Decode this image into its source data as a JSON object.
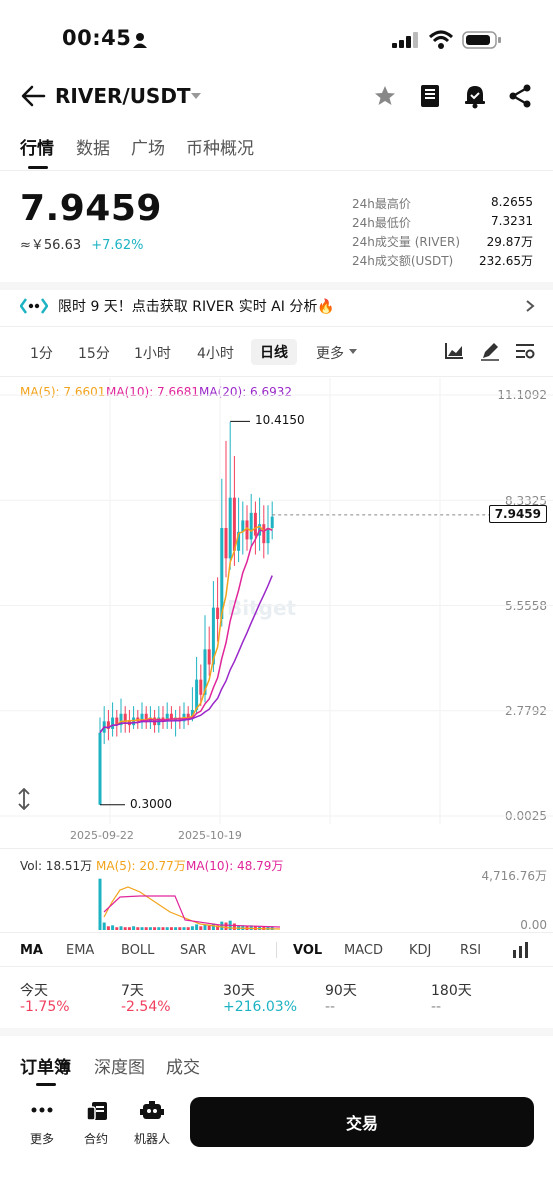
{
  "status_bar": {
    "time": "00:45"
  },
  "header": {
    "pair": "RIVER/USDT"
  },
  "tabs": [
    "行情",
    "数据",
    "广场",
    "币种概况"
  ],
  "ticker": {
    "price": "7.9459",
    "cny": "≈￥56.63",
    "change": "+7.62%",
    "stats": [
      {
        "label": "24h最高价",
        "value": "8.2655"
      },
      {
        "label": "24h最低价",
        "value": "7.3231"
      },
      {
        "label": "24h成交量 (RIVER)",
        "value": "29.87万"
      },
      {
        "label": "24h成交额(USDT)",
        "value": "232.65万"
      }
    ]
  },
  "banner": {
    "text": "限时 9 天！点击获取 RIVER 实时 AI 分析🔥"
  },
  "intervals": [
    "1分",
    "15分",
    "1小时",
    "4小时",
    "日线",
    "更多"
  ],
  "chart_data": {
    "type": "candlestick",
    "ma_labels": {
      "ma5": "MA(5): 7.6601",
      "ma10": "MA(10): 7.6681",
      "ma20": "MA(20): 6.6932"
    },
    "y_ticks": [
      "11.1092",
      "8.3325",
      "5.5558",
      "2.7792",
      "0.0025"
    ],
    "y_range": [
      0.0025,
      11.1092
    ],
    "x_ticks": [
      "2025-09-22",
      "2025-10-19"
    ],
    "high_label": "10.4150",
    "low_label": "0.3000",
    "last_price": "7.9459",
    "candles_o_c_h_l": [
      [
        0.3,
        2.2,
        2.6,
        0.3
      ],
      [
        2.2,
        2.5,
        2.9,
        1.9
      ],
      [
        2.5,
        2.3,
        2.8,
        2.0
      ],
      [
        2.3,
        2.6,
        3.0,
        2.1
      ],
      [
        2.6,
        2.4,
        2.8,
        2.1
      ],
      [
        2.4,
        2.7,
        3.1,
        2.2
      ],
      [
        2.7,
        2.5,
        2.9,
        2.2
      ],
      [
        2.5,
        2.4,
        2.8,
        2.2
      ],
      [
        2.4,
        2.6,
        2.9,
        2.3
      ],
      [
        2.6,
        2.5,
        2.8,
        2.3
      ],
      [
        2.5,
        2.7,
        3.0,
        2.3
      ],
      [
        2.7,
        2.5,
        2.9,
        2.3
      ],
      [
        2.5,
        2.6,
        2.9,
        2.3
      ],
      [
        2.6,
        2.4,
        2.8,
        2.2
      ],
      [
        2.4,
        2.6,
        2.9,
        2.2
      ],
      [
        2.6,
        2.5,
        2.9,
        2.3
      ],
      [
        2.5,
        2.7,
        3.0,
        2.3
      ],
      [
        2.7,
        2.5,
        2.9,
        2.3
      ],
      [
        2.5,
        2.6,
        2.8,
        2.1
      ],
      [
        2.6,
        2.5,
        2.9,
        2.3
      ],
      [
        2.5,
        2.7,
        3.0,
        2.3
      ],
      [
        2.7,
        2.6,
        2.9,
        2.4
      ],
      [
        2.6,
        2.8,
        3.4,
        2.5
      ],
      [
        2.8,
        3.6,
        4.2,
        2.7
      ],
      [
        3.6,
        3.2,
        4.0,
        2.9
      ],
      [
        3.2,
        4.4,
        5.3,
        3.0
      ],
      [
        4.4,
        4.0,
        5.0,
        3.7
      ],
      [
        4.0,
        5.5,
        6.2,
        3.8
      ],
      [
        5.5,
        5.2,
        6.3,
        4.6
      ],
      [
        5.2,
        7.6,
        8.9,
        5.0
      ],
      [
        7.6,
        6.8,
        9.9,
        6.3
      ],
      [
        6.8,
        8.4,
        10.4,
        6.5
      ],
      [
        8.4,
        7.0,
        9.5,
        6.6
      ],
      [
        7.0,
        7.5,
        8.4,
        6.7
      ],
      [
        7.5,
        7.8,
        8.3,
        6.9
      ],
      [
        7.8,
        7.3,
        8.2,
        7.0
      ],
      [
        7.3,
        8.0,
        8.5,
        7.1
      ],
      [
        8.0,
        7.4,
        8.3,
        6.9
      ],
      [
        7.4,
        7.7,
        8.4,
        7.0
      ],
      [
        7.7,
        7.2,
        8.2,
        6.8
      ],
      [
        7.2,
        7.6,
        8.2,
        6.9
      ],
      [
        7.6,
        7.9,
        8.3,
        7.3
      ]
    ],
    "vol_labels": {
      "vol": "Vol: 18.51万",
      "ma5": "MA(5): 20.77万",
      "ma10": "MA(10): 48.79万"
    },
    "vol_ticks": [
      "4,716.76万",
      "0.00"
    ]
  },
  "indicators": [
    "MA",
    "EMA",
    "BOLL",
    "SAR",
    "AVL",
    "VOL",
    "MACD",
    "KDJ",
    "RSI"
  ],
  "periods": [
    {
      "label": "今天",
      "value": "-1.75%"
    },
    {
      "label": "7天",
      "value": "-2.54%"
    },
    {
      "label": "30天",
      "value": "+216.03%"
    },
    {
      "label": "90天",
      "value": "--"
    },
    {
      "label": "180天",
      "value": "--"
    }
  ],
  "book_tabs": [
    "订单簿",
    "深度图",
    "成交"
  ],
  "bottom_nav": {
    "more": "更多",
    "contract": "合约",
    "bot": "机器人",
    "trade": "交易"
  },
  "watermark": "Bitget"
}
